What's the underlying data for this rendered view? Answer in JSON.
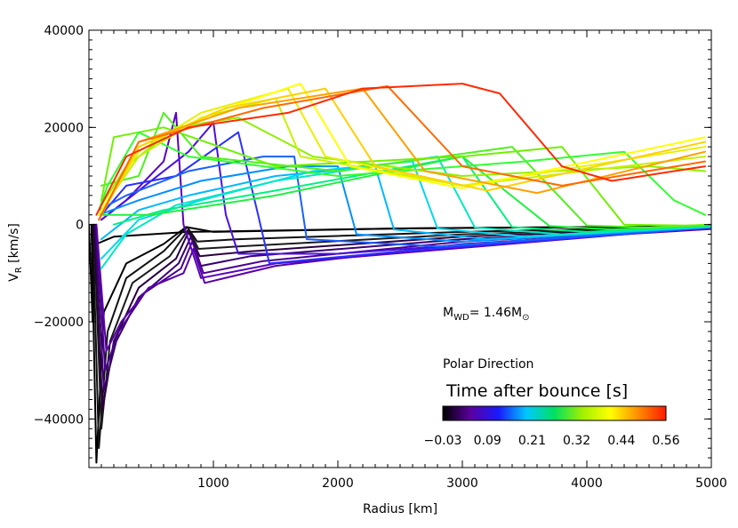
{
  "chart_data": {
    "type": "line",
    "xlabel": "Radius [km]",
    "ylabel_main": "V",
    "ylabel_sub": "R",
    "ylabel_unit": "[km/s]",
    "xlim": [
      0,
      5000
    ],
    "ylim": [
      -50000,
      40000
    ],
    "x_ticks": [
      1000,
      2000,
      3000,
      4000,
      5000
    ],
    "y_ticks": [
      40000,
      20000,
      0,
      -20000,
      -40000
    ],
    "x_tick_labels": [
      "1000",
      "2000",
      "3000",
      "4000",
      "5000"
    ],
    "y_tick_labels": [
      "40000",
      "20000",
      "0",
      "−20000",
      "−40000"
    ],
    "grid": false,
    "annotations": {
      "mass_main": "M",
      "mass_sub": "WD",
      "mass_eq": "= 1.46M",
      "mass_sun": "⊙",
      "direction": "Polar Direction"
    },
    "colorbar": {
      "title": "Time after bounce [s]",
      "range": [
        -0.03,
        0.56
      ],
      "tick_labels": [
        "−0.03",
        "0.09",
        "0.21",
        "0.32",
        "0.44",
        "0.56"
      ],
      "colormap": [
        "#000000",
        "#5a00a0",
        "#1a1aff",
        "#00c8ff",
        "#00e060",
        "#a0f000",
        "#ffff00",
        "#ff8c00",
        "#ff1a00"
      ]
    },
    "series": [
      {
        "name": "t=-0.03",
        "color": "#000000",
        "points": [
          [
            0,
            0
          ],
          [
            30,
            -20000
          ],
          [
            60,
            -4000
          ],
          [
            200,
            -2500
          ],
          [
            800,
            -1500
          ],
          [
            2500,
            -800
          ],
          [
            5000,
            -300
          ]
        ]
      },
      {
        "name": "t=-0.02",
        "color": "#000000",
        "points": [
          [
            20,
            0
          ],
          [
            60,
            -49000
          ],
          [
            120,
            -18000
          ],
          [
            300,
            -8000
          ],
          [
            600,
            -4000
          ],
          [
            780,
            -500
          ],
          [
            1000,
            -1500
          ],
          [
            2500,
            -800
          ],
          [
            5000,
            -300
          ]
        ]
      },
      {
        "name": "t=-0.01",
        "color": "#101010",
        "points": [
          [
            30,
            0
          ],
          [
            80,
            -46000
          ],
          [
            150,
            -22000
          ],
          [
            300,
            -11000
          ],
          [
            600,
            -5500
          ],
          [
            790,
            -500
          ],
          [
            870,
            -3500
          ],
          [
            1200,
            -3000
          ],
          [
            3000,
            -1500
          ],
          [
            5000,
            -400
          ]
        ]
      },
      {
        "name": "t=0.00",
        "color": "#1a1a1a",
        "points": [
          [
            40,
            0
          ],
          [
            100,
            -42000
          ],
          [
            170,
            -24000
          ],
          [
            350,
            -12000
          ],
          [
            650,
            -6500
          ],
          [
            800,
            -1000
          ],
          [
            880,
            -5000
          ],
          [
            1200,
            -4500
          ],
          [
            3000,
            -2000
          ],
          [
            5000,
            -500
          ]
        ]
      },
      {
        "name": "t=0.01",
        "color": "#2a0040",
        "points": [
          [
            40,
            0
          ],
          [
            110,
            -38000
          ],
          [
            200,
            -24000
          ],
          [
            400,
            -13000
          ],
          [
            700,
            -7000
          ],
          [
            800,
            -1500
          ],
          [
            890,
            -6500
          ],
          [
            1300,
            -5500
          ],
          [
            3000,
            -2500
          ],
          [
            5000,
            -600
          ]
        ]
      },
      {
        "name": "t=0.02",
        "color": "#3a0070",
        "points": [
          [
            50,
            0
          ],
          [
            120,
            -34000
          ],
          [
            220,
            -24000
          ],
          [
            400,
            -15000
          ],
          [
            720,
            -8000
          ],
          [
            820,
            -2500
          ],
          [
            900,
            -8500
          ],
          [
            1300,
            -6500
          ],
          [
            3000,
            -3000
          ],
          [
            5000,
            -700
          ]
        ]
      },
      {
        "name": "t=0.03",
        "color": "#4a0090",
        "points": [
          [
            60,
            0
          ],
          [
            130,
            -30000
          ],
          [
            240,
            -22000
          ],
          [
            450,
            -14000
          ],
          [
            740,
            -9000
          ],
          [
            830,
            -3500
          ],
          [
            920,
            -10000
          ],
          [
            1400,
            -7500
          ],
          [
            3000,
            -3500
          ],
          [
            5000,
            -800
          ]
        ]
      },
      {
        "name": "t=0.04",
        "color": "#5a00a8",
        "points": [
          [
            60,
            0
          ],
          [
            140,
            -26000
          ],
          [
            260,
            -20000
          ],
          [
            480,
            -13000
          ],
          [
            760,
            -10000
          ],
          [
            840,
            -5000
          ],
          [
            930,
            -12000
          ],
          [
            1500,
            -8500
          ],
          [
            3000,
            -4000
          ],
          [
            5000,
            -900
          ]
        ]
      },
      {
        "name": "t=0.05",
        "color": "#5a00c0",
        "points": [
          [
            100,
            1000
          ],
          [
            300,
            5000
          ],
          [
            600,
            13000
          ],
          [
            700,
            23000
          ],
          [
            760,
            0
          ],
          [
            900,
            -11000
          ],
          [
            1500,
            -8000
          ],
          [
            5000,
            -500
          ]
        ]
      },
      {
        "name": "t=0.06",
        "color": "#4a10e0",
        "points": [
          [
            100,
            1000
          ],
          [
            400,
            7000
          ],
          [
            800,
            15000
          ],
          [
            1000,
            21000
          ],
          [
            1100,
            2000
          ],
          [
            1200,
            -6000
          ],
          [
            2000,
            -6000
          ],
          [
            5000,
            -500
          ]
        ]
      },
      {
        "name": "t=0.08",
        "color": "#2a30ff",
        "points": [
          [
            100,
            2000
          ],
          [
            300,
            8000
          ],
          [
            700,
            10000
          ],
          [
            1200,
            19000
          ],
          [
            1350,
            3000
          ],
          [
            1450,
            -8000
          ],
          [
            2500,
            -5500
          ],
          [
            5000,
            -600
          ]
        ]
      },
      {
        "name": "t=0.10",
        "color": "#1a60ff",
        "points": [
          [
            80,
            3000
          ],
          [
            300,
            6000
          ],
          [
            800,
            11000
          ],
          [
            1400,
            14000
          ],
          [
            1650,
            14000
          ],
          [
            1750,
            -3000
          ],
          [
            2800,
            -4500
          ],
          [
            5000,
            -600
          ]
        ]
      },
      {
        "name": "t=0.12",
        "color": "#0090ff",
        "points": [
          [
            80,
            2000
          ],
          [
            400,
            5000
          ],
          [
            900,
            9000
          ],
          [
            1600,
            12000
          ],
          [
            2000,
            12000
          ],
          [
            2150,
            -2000
          ],
          [
            3000,
            -3500
          ],
          [
            5000,
            -500
          ]
        ]
      },
      {
        "name": "t=0.15",
        "color": "#00b8ff",
        "points": [
          [
            100,
            -3000
          ],
          [
            400,
            3000
          ],
          [
            800,
            6000
          ],
          [
            1500,
            10000
          ],
          [
            2300,
            12000
          ],
          [
            2450,
            -1000
          ],
          [
            3200,
            -3000
          ],
          [
            5000,
            -500
          ]
        ]
      },
      {
        "name": "t=0.18",
        "color": "#00d8f0",
        "points": [
          [
            100,
            -7000
          ],
          [
            400,
            1000
          ],
          [
            900,
            5000
          ],
          [
            1800,
            11000
          ],
          [
            2600,
            13000
          ],
          [
            2800,
            -800
          ],
          [
            3500,
            -2500
          ],
          [
            5000,
            -400
          ]
        ]
      },
      {
        "name": "t=0.21",
        "color": "#00e8c0",
        "points": [
          [
            100,
            -9000
          ],
          [
            300,
            -2000
          ],
          [
            700,
            4000
          ],
          [
            1500,
            9000
          ],
          [
            2800,
            14000
          ],
          [
            3100,
            -600
          ],
          [
            3800,
            -2000
          ],
          [
            5000,
            -300
          ]
        ]
      },
      {
        "name": "t=0.24",
        "color": "#00f080",
        "points": [
          [
            200,
            0
          ],
          [
            600,
            3000
          ],
          [
            1500,
            7000
          ],
          [
            3000,
            14000
          ],
          [
            3400,
            -500
          ],
          [
            4000,
            -1500
          ],
          [
            5000,
            -200
          ]
        ]
      },
      {
        "name": "t=0.27",
        "color": "#20f040",
        "points": [
          [
            100,
            2000
          ],
          [
            500,
            2000
          ],
          [
            1500,
            6000
          ],
          [
            3000,
            14000
          ],
          [
            3700,
            -300
          ],
          [
            4200,
            -1000
          ],
          [
            5000,
            -100
          ]
        ]
      },
      {
        "name": "t=0.29",
        "color": "#50f020",
        "points": [
          [
            100,
            8000
          ],
          [
            400,
            10000
          ],
          [
            600,
            23000
          ],
          [
            900,
            14000
          ],
          [
            2000,
            11000
          ],
          [
            3400,
            16000
          ],
          [
            4000,
            -200
          ],
          [
            4500,
            -600
          ],
          [
            5000,
            0
          ]
        ]
      },
      {
        "name": "t=0.31",
        "color": "#70f000",
        "points": [
          [
            100,
            5000
          ],
          [
            200,
            18000
          ],
          [
            600,
            20000
          ],
          [
            1500,
            12000
          ],
          [
            3000,
            14000
          ],
          [
            3800,
            16000
          ],
          [
            4300,
            0
          ],
          [
            4800,
            -200
          ],
          [
            5000,
            0
          ]
        ]
      },
      {
        "name": "t=0.33",
        "color": "#30ff30",
        "points": [
          [
            80,
            3000
          ],
          [
            150,
            8000
          ],
          [
            400,
            19000
          ],
          [
            800,
            14000
          ],
          [
            2000,
            10000
          ],
          [
            3500,
            13000
          ],
          [
            4300,
            15000
          ],
          [
            4700,
            5000
          ],
          [
            4950,
            2000
          ]
        ]
      },
      {
        "name": "t=0.35",
        "color": "#90f000",
        "points": [
          [
            100,
            4000
          ],
          [
            300,
            12000
          ],
          [
            700,
            20000
          ],
          [
            1200,
            22000
          ],
          [
            1800,
            14000
          ],
          [
            3000,
            10000
          ],
          [
            4500,
            12000
          ],
          [
            4950,
            11000
          ]
        ]
      },
      {
        "name": "t=0.38",
        "color": "#c8f000",
        "points": [
          [
            100,
            3000
          ],
          [
            400,
            14000
          ],
          [
            900,
            22000
          ],
          [
            1500,
            26000
          ],
          [
            1700,
            14000
          ],
          [
            3000,
            8000
          ],
          [
            4950,
            14000
          ]
        ]
      },
      {
        "name": "t=0.41",
        "color": "#e8f000",
        "points": [
          [
            100,
            3000
          ],
          [
            400,
            15000
          ],
          [
            900,
            23000
          ],
          [
            1600,
            28000
          ],
          [
            1900,
            14000
          ],
          [
            3000,
            8000
          ],
          [
            4950,
            16000
          ]
        ]
      },
      {
        "name": "t=0.44",
        "color": "#ffff00",
        "points": [
          [
            80,
            2000
          ],
          [
            400,
            16000
          ],
          [
            1000,
            23000
          ],
          [
            1700,
            29000
          ],
          [
            2100,
            12000
          ],
          [
            3000,
            7500
          ],
          [
            4950,
            18000
          ]
        ]
      },
      {
        "name": "t=0.47",
        "color": "#ffd000",
        "points": [
          [
            80,
            1000
          ],
          [
            400,
            16000
          ],
          [
            1100,
            24000
          ],
          [
            1900,
            28000
          ],
          [
            2300,
            12000
          ],
          [
            3200,
            7000
          ],
          [
            4950,
            17000
          ]
        ]
      },
      {
        "name": "t=0.50",
        "color": "#ffa000",
        "points": [
          [
            80,
            1000
          ],
          [
            400,
            17000
          ],
          [
            1200,
            24000
          ],
          [
            2200,
            28000
          ],
          [
            2700,
            11000
          ],
          [
            3600,
            6500
          ],
          [
            4950,
            15000
          ]
        ]
      },
      {
        "name": "t=0.53",
        "color": "#ff6a00",
        "points": [
          [
            80,
            1000
          ],
          [
            400,
            17000
          ],
          [
            1400,
            24000
          ],
          [
            2400,
            28500
          ],
          [
            3000,
            12000
          ],
          [
            3800,
            8000
          ],
          [
            4950,
            13000
          ]
        ]
      },
      {
        "name": "t=0.56",
        "color": "#ff2a00",
        "points": [
          [
            60,
            2000
          ],
          [
            300,
            14000
          ],
          [
            800,
            20000
          ],
          [
            1600,
            23000
          ],
          [
            2200,
            28000
          ],
          [
            3000,
            29000
          ],
          [
            3300,
            27000
          ],
          [
            3800,
            12000
          ],
          [
            4200,
            9000
          ],
          [
            4950,
            12000
          ]
        ]
      }
    ]
  }
}
